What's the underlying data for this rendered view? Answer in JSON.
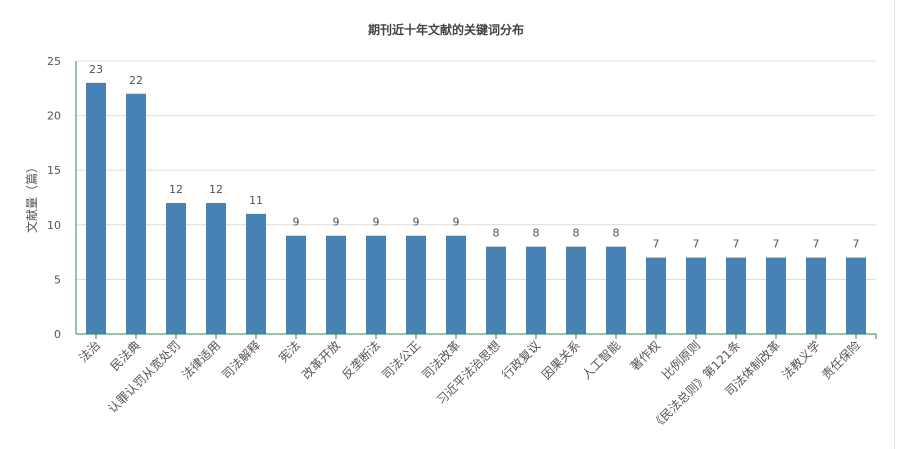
{
  "chart_data": {
    "type": "bar",
    "title": "期刊近十年文献的关键词分布",
    "ylabel": "文献量（篇）",
    "xlabel": "",
    "ylim": [
      0,
      25
    ],
    "yticks": [
      0,
      5,
      10,
      15,
      20,
      25
    ],
    "grid": true,
    "categories": [
      "法治",
      "民法典",
      "认罪认罚从宽处罚",
      "法律适用",
      "司法解释",
      "宪法",
      "改革开放",
      "反垄断法",
      "司法公正",
      "司法改革",
      "习近平法治思想",
      "行政复议",
      "因果关系",
      "人工智能",
      "著作权",
      "比例原则",
      "《民法总则》第121条",
      "司法体制改革",
      "法教义学",
      "责任保险"
    ],
    "values": [
      23,
      22,
      12,
      12,
      11,
      9,
      9,
      9,
      9,
      9,
      8,
      8,
      8,
      8,
      7,
      7,
      7,
      7,
      7,
      7
    ],
    "colors": {
      "bar": "#4682b4",
      "axis": "#2e8b57",
      "grid": "#dddddd",
      "text": "#555555",
      "title": "#444444"
    }
  }
}
